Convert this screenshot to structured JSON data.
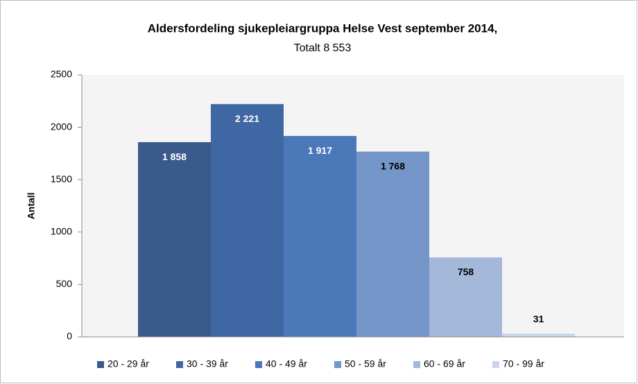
{
  "chart_data": {
    "type": "bar",
    "title": "Aldersfordeling sjukepleiargruppa  Helse Vest september 2014,",
    "subtitle": "Totalt 8 553",
    "y_label": "Antall",
    "categories": [
      "20 - 29 år",
      "30 - 39 år",
      "40 - 49 år",
      "50 - 59 år",
      "60 - 69 år",
      "70 - 99 år"
    ],
    "values": [
      1858,
      2221,
      1917,
      1768,
      758,
      31
    ],
    "value_labels": [
      "1 858",
      "2 221",
      "1 917",
      "1 768",
      "758",
      "31"
    ],
    "colors": [
      "#3a5a8c",
      "#3f67a3",
      "#4a78b9",
      "#7496c9",
      "#a4b8da",
      "#c8d5ea"
    ],
    "value_label_colors": [
      "#ffffff",
      "#ffffff",
      "#ffffff",
      "#000000",
      "#000000",
      "#000000"
    ],
    "ylim": [
      0,
      2500
    ],
    "yticks": [
      0,
      500,
      1000,
      1500,
      2000,
      2500
    ],
    "legend": "bottom"
  }
}
